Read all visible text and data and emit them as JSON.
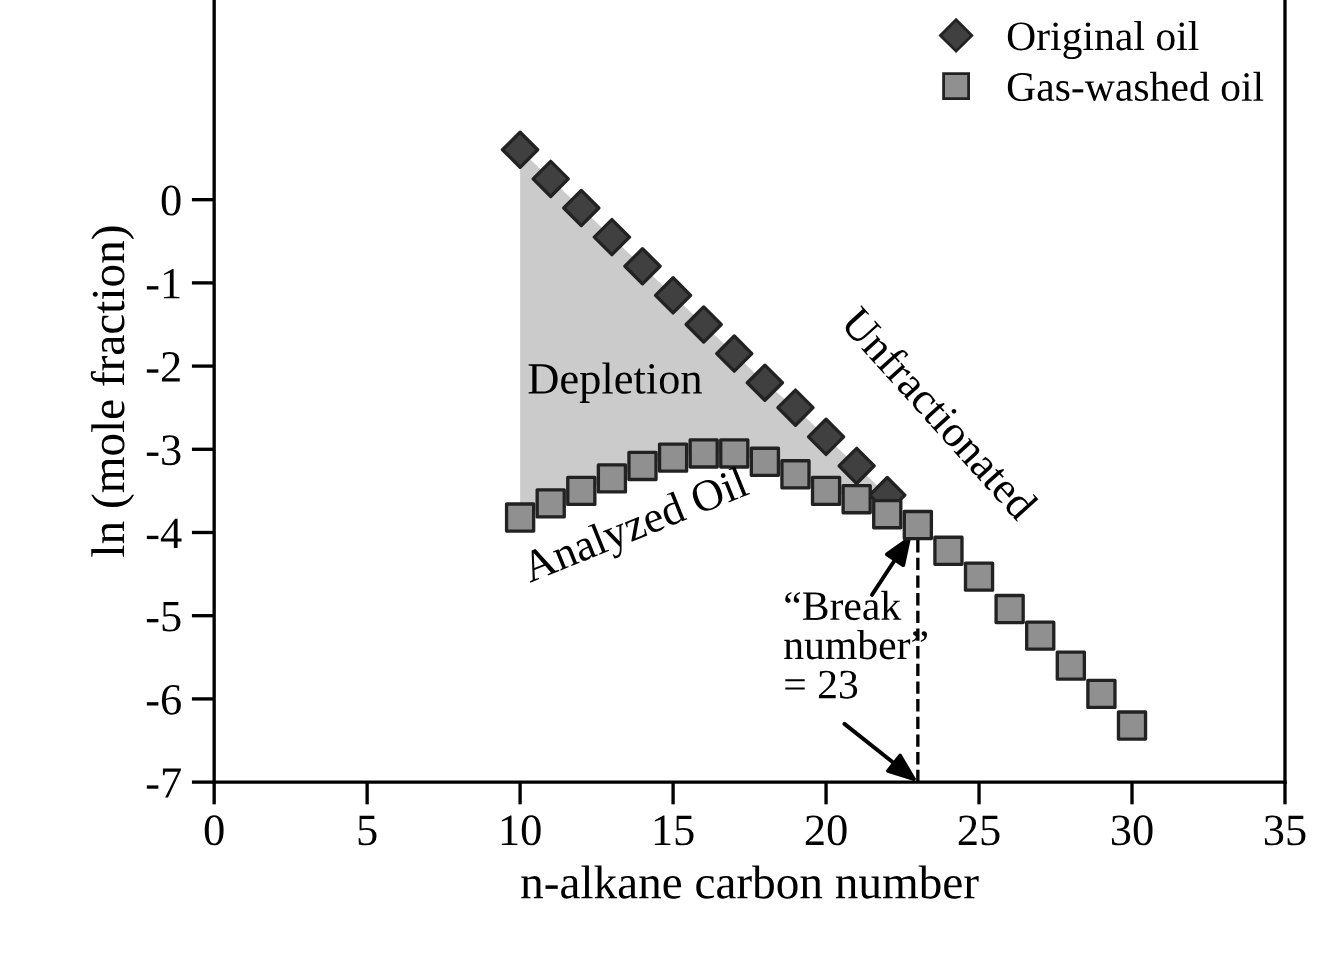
{
  "chart_data": {
    "type": "scatter",
    "xlabel": "n-alkane carbon number",
    "ylabel": "ln (mole fraction)",
    "xlim": [
      0,
      35
    ],
    "xticks": [
      0,
      5,
      10,
      15,
      20,
      25,
      30,
      35
    ],
    "ylim": [
      -7,
      2.4
    ],
    "yticks": [
      -7,
      -6,
      -5,
      -4,
      -3,
      -2,
      -1,
      0
    ],
    "grid": false,
    "legend": "top right",
    "series": [
      {
        "name": "Original oil",
        "color": "#404040",
        "marker": "diamond",
        "x": [
          10,
          11,
          12,
          13,
          14,
          15,
          16,
          17,
          18,
          19,
          20,
          21,
          22
        ],
        "values": [
          0.6,
          0.25,
          -0.1,
          -0.45,
          -0.8,
          -1.15,
          -1.5,
          -1.85,
          -2.2,
          -2.5,
          -2.85,
          -3.2,
          -3.55
        ],
        "lower": [
          -3.82,
          -3.65,
          -3.5,
          -3.35,
          -3.2,
          -3.1,
          -3.05,
          -3.05,
          -3.15,
          -3.3,
          -3.5,
          -3.6,
          -3.55
        ],
        "upper": [
          0.6,
          0.25,
          -0.1,
          -0.45,
          -0.8,
          -1.15,
          -1.5,
          -1.85,
          -2.2,
          -2.5,
          -2.85,
          -3.2,
          -3.55
        ]
      },
      {
        "name": "Gas-washed oil",
        "color": "#909090",
        "marker": "square",
        "x": [
          10,
          11,
          12,
          13,
          14,
          15,
          16,
          17,
          18,
          19,
          20,
          21,
          22,
          23,
          24,
          25,
          26,
          27,
          28,
          29,
          30
        ],
        "values": [
          -3.82,
          -3.65,
          -3.5,
          -3.35,
          -3.2,
          -3.1,
          -3.05,
          -3.05,
          -3.15,
          -3.3,
          -3.5,
          -3.6,
          -3.78,
          -3.91,
          -4.22,
          -4.53,
          -4.92,
          -5.24,
          -5.6,
          -5.94,
          -6.32
        ]
      }
    ],
    "ref_lines": [
      {
        "axis": "x",
        "value": 23,
        "label": null,
        "line_style": "dashed",
        "color": "#000000"
      }
    ],
    "annotations": [
      {
        "text": "Depletion"
      },
      {
        "text": "Analyzed Oil"
      },
      {
        "text": "Unfractionated"
      },
      {
        "text": "“Break\nnumber”\n= 23",
        "x": 23,
        "y": -3.91
      }
    ]
  }
}
